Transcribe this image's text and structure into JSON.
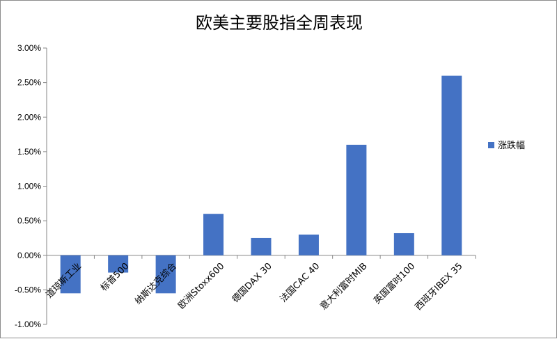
{
  "chart_data": {
    "type": "bar",
    "title": "欧美主要股指全周表现",
    "categories": [
      "道琼斯工业",
      "标普500",
      "纳斯达克综合",
      "欧洲Stoxx600",
      "德国DAX 30",
      "法国CAC 40",
      "意大利富时MIB",
      "英国富时100",
      "西班牙IBEX 35"
    ],
    "series": [
      {
        "name": "涨跌幅",
        "values": [
          -0.0055,
          -0.0025,
          -0.0055,
          0.006,
          0.0025,
          0.003,
          0.016,
          0.0032,
          0.026
        ]
      }
    ],
    "ylim": [
      -0.01,
      0.03
    ],
    "yticks": [
      "-1.00%",
      "-0.50%",
      "0.00%",
      "0.50%",
      "1.00%",
      "1.50%",
      "2.00%",
      "2.50%",
      "3.00%"
    ],
    "xlabel": "",
    "ylabel": "",
    "grid": false,
    "legend_position": "right",
    "colors": {
      "bar": "#4472c4",
      "axis": "#868686"
    }
  }
}
